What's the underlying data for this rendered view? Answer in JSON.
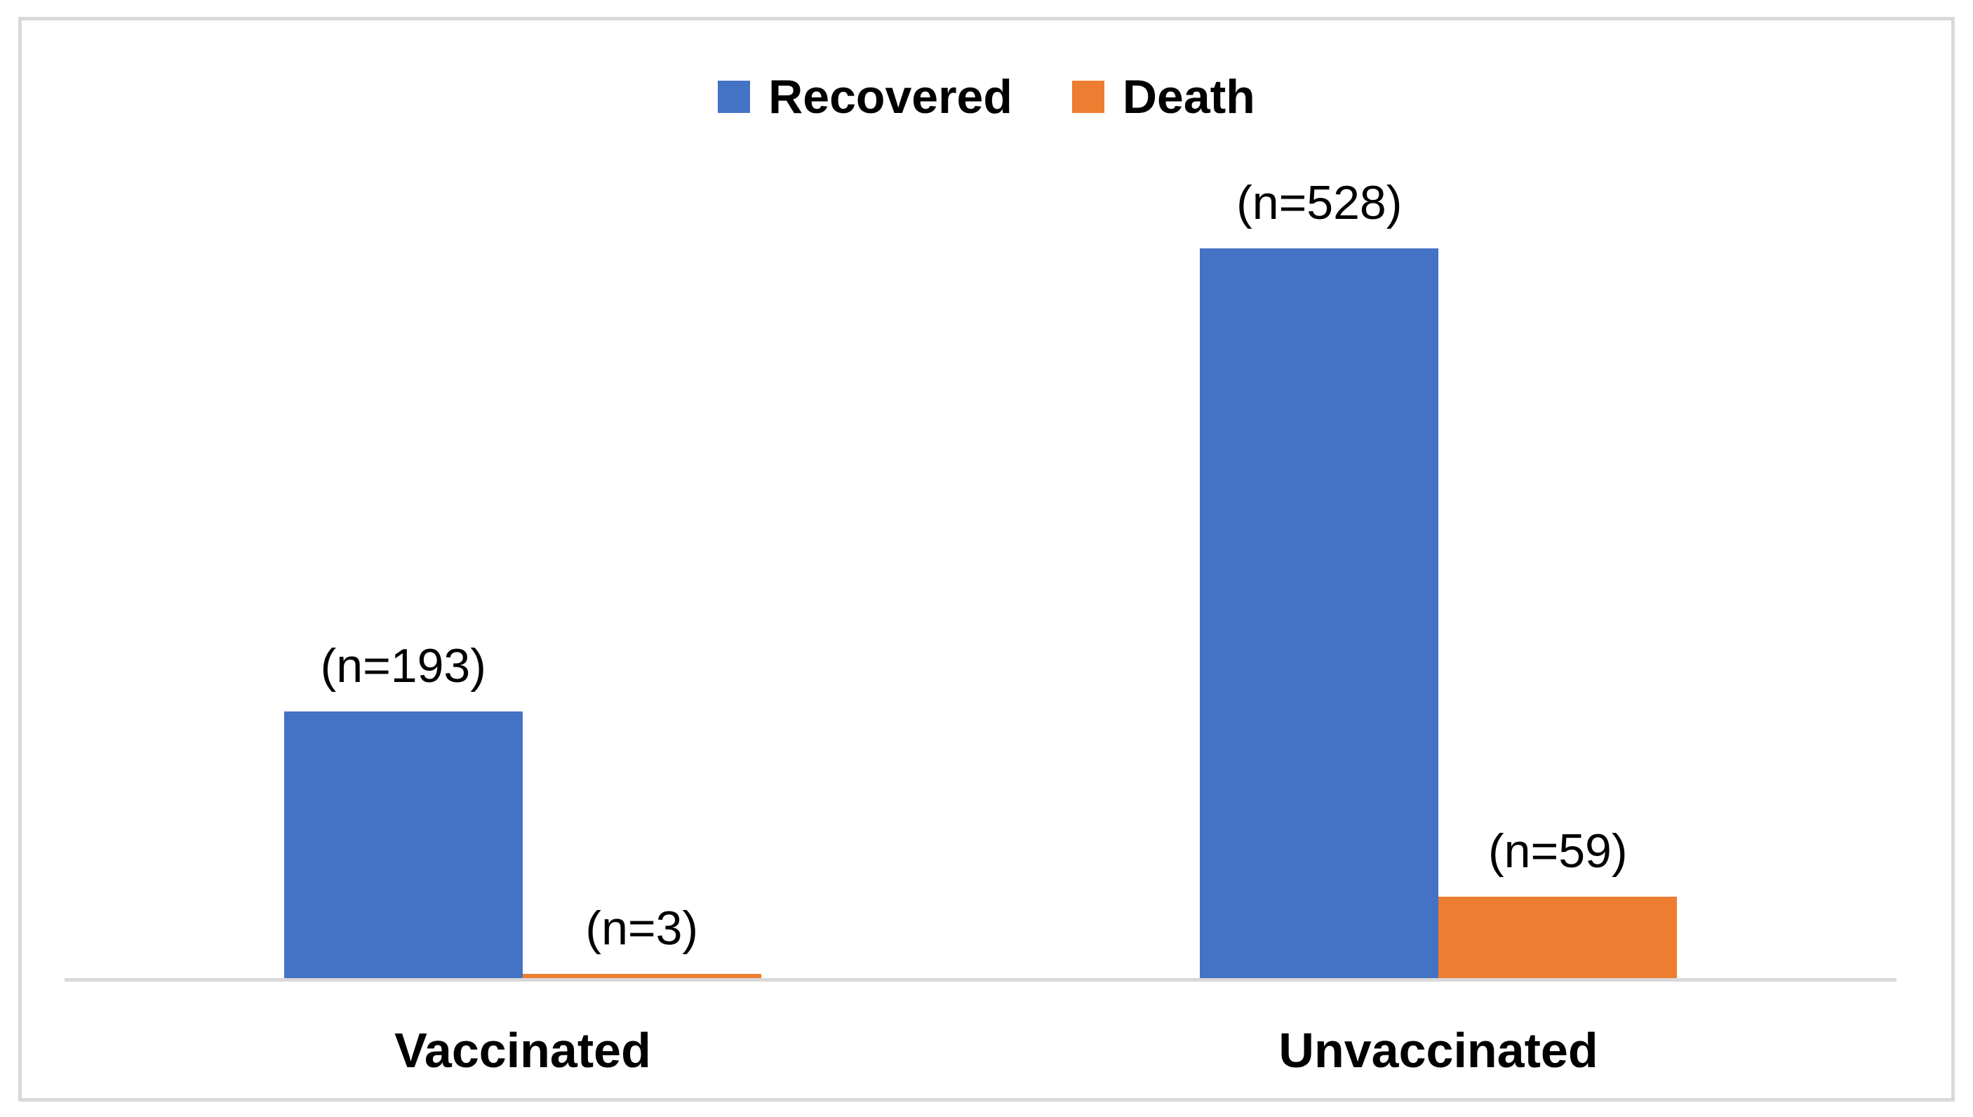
{
  "chart_data": {
    "type": "bar",
    "title": "",
    "categories": [
      "Vaccinated",
      "Unvaccinated"
    ],
    "series": [
      {
        "name": "Recovered",
        "color": "#4472C4",
        "values": [
          193,
          528
        ],
        "point_labels": [
          "(n=193)",
          "(n=528)"
        ]
      },
      {
        "name": "Death",
        "color": "#ED7D31",
        "values": [
          3,
          59
        ],
        "point_labels": [
          "(n=3)",
          "(n=59)"
        ]
      }
    ],
    "xlabel": "",
    "ylabel": "",
    "ylim": [
      0,
      600
    ],
    "grid": false,
    "y_axis_ticks_visible": false,
    "legend_position": "top-center",
    "axis_line_color": "#D9D9D9",
    "frame_border_color": "#D9D9D9",
    "background": "#FFFFFF",
    "label_text_color": "#000000"
  }
}
